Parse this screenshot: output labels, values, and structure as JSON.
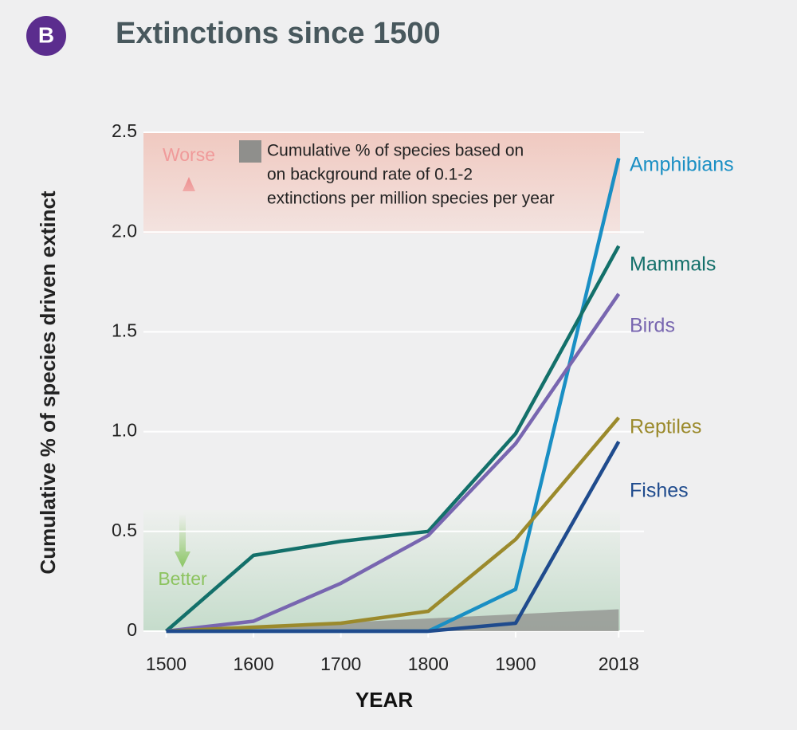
{
  "badge": "B",
  "chart_data": {
    "type": "line",
    "title": "Extinctions since 1500",
    "ylabel": "Cumulative % of species driven extinct",
    "xlabel": "YEAR",
    "x": [
      1500,
      1600,
      1700,
      1800,
      1900,
      2018
    ],
    "xlim": [
      1474,
      2067
    ],
    "xticks": [
      1500,
      1600,
      1700,
      1800,
      1900,
      2018
    ],
    "ylim": [
      0,
      2.5
    ],
    "yticks": [
      0,
      0.5,
      {
        "value": 1,
        "label": "1.0"
      },
      1.5,
      {
        "value": 2,
        "label": "2.0"
      },
      2.5
    ],
    "grid": true,
    "worse_label": "Worse",
    "better_label": "Better",
    "background": {
      "label": [
        "Cumulative % of species based on",
        "on background rate of 0.1-2",
        "extinctions per million species per year"
      ],
      "x": [
        1500,
        2018
      ],
      "upper": [
        0,
        0.11
      ],
      "color": "#8f8f8c"
    },
    "series": [
      {
        "name": "Amphibians",
        "color": "#1a8fc4",
        "values": [
          0,
          0,
          0,
          0,
          0.21,
          2.37
        ]
      },
      {
        "name": "Mammals",
        "color": "#13706a",
        "values": [
          0,
          0.38,
          0.45,
          0.5,
          0.99,
          1.93
        ]
      },
      {
        "name": "Birds",
        "color": "#7866b0",
        "values": [
          0,
          0.05,
          0.24,
          0.48,
          0.94,
          1.69
        ]
      },
      {
        "name": "Reptiles",
        "color": "#9b8a2c",
        "values": [
          0,
          0.02,
          0.04,
          0.1,
          0.46,
          1.07
        ]
      },
      {
        "name": "Fishes",
        "color": "#1f4b8d",
        "values": [
          0,
          0,
          0,
          0,
          0.04,
          0.95
        ]
      }
    ]
  }
}
